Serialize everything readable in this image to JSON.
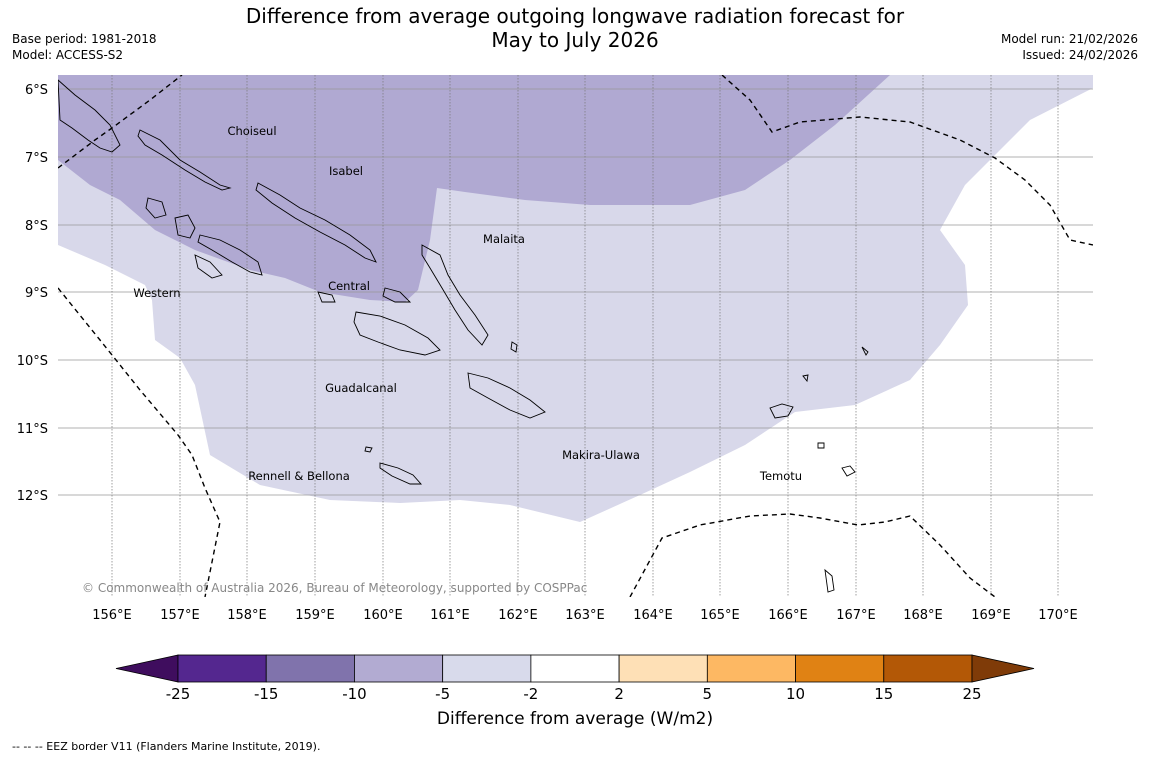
{
  "title": {
    "line1": "Difference from average outgoing longwave radiation forecast for",
    "line2": "May to July 2026"
  },
  "meta_left": {
    "base_period": "Base period: 1981-2018",
    "model": "Model: ACCESS-S2"
  },
  "meta_right": {
    "model_run": "Model run: 21/02/2026",
    "issued": "Issued: 24/02/2026"
  },
  "map": {
    "latitude_labels": [
      "6°S",
      "7°S",
      "8°S",
      "9°S",
      "10°S",
      "11°S",
      "12°S"
    ],
    "longitude_labels": [
      "156°E",
      "157°E",
      "158°E",
      "159°E",
      "160°E",
      "161°E",
      "162°E",
      "163°E",
      "164°E",
      "165°E",
      "166°E",
      "167°E",
      "168°E",
      "169°E",
      "170°E"
    ],
    "provinces": {
      "choiseul": "Choiseul",
      "isabel": "Isabel",
      "malaita": "Malaita",
      "western": "Western",
      "central": "Central",
      "guadalcanal": "Guadalcanal",
      "makira": "Makira-Ulawa",
      "rennell": "Rennell & Bellona",
      "temotu": "Temotu"
    },
    "copyright": "© Commonwealth of Australia 2026, Bureau of Meteorology, supported by COSPPac",
    "fill_colors": {
      "minus10_to_minus5": "#b0a9d2",
      "minus5_to_minus2": "#d8d8ea"
    }
  },
  "colorbar": {
    "ticks": [
      "-25",
      "-15",
      "-10",
      "-5",
      "-2",
      "2",
      "5",
      "10",
      "15",
      "25"
    ],
    "colors": [
      "#3f0d5e",
      "#54278f",
      "#8073ac",
      "#b2abd2",
      "#d8daeb",
      "#ffffff",
      "#fee0b6",
      "#fdb863",
      "#e08214",
      "#b35806",
      "#7f3b08"
    ],
    "label": "Difference from average (W/m2)"
  },
  "eez_note": "--  --  -- EEZ border V11 (Flanders Marine Institute, 2019)."
}
